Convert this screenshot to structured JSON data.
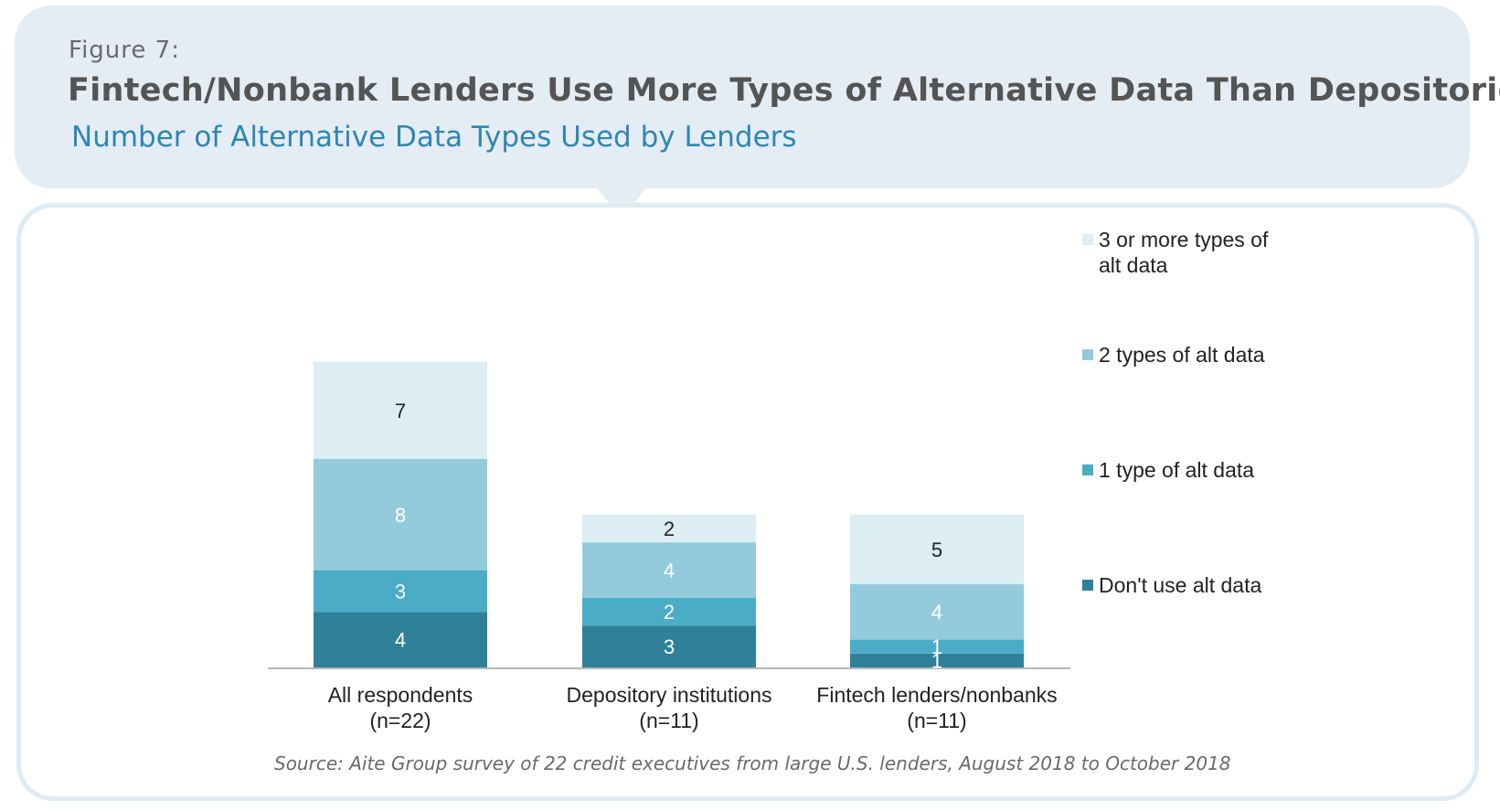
{
  "header": {
    "figure_label": "Figure 7:",
    "title": "Fintech/Nonbank Lenders Use More Types of Alternative Data Than Depositories",
    "subtitle": "Number of Alternative Data Types Used by Lenders"
  },
  "source": "Source: Aite Group survey of 22 credit executives from large U.S. lenders, August 2018 to October 2018",
  "chart_data": {
    "type": "bar",
    "stacked": true,
    "categories": [
      [
        "All respondents",
        "(n=22)"
      ],
      [
        "Depository institutions",
        "(n=11)"
      ],
      [
        "Fintech lenders/nonbanks",
        "(n=11)"
      ]
    ],
    "series": [
      {
        "name": "Don't use alt data",
        "values": [
          4,
          3,
          1
        ],
        "color": "#2e8199",
        "label_color": "#ffffff"
      },
      {
        "name": "1 type of alt data",
        "values": [
          3,
          2,
          1
        ],
        "color": "#4aacc6",
        "label_color": "#ffffff"
      },
      {
        "name": "2 types of alt data",
        "values": [
          8,
          4,
          4
        ],
        "color": "#94cbdc",
        "label_color": "#ffffff"
      },
      {
        "name": "3 or more types of alt data",
        "values": [
          7,
          2,
          5
        ],
        "color": "#dcedf4",
        "label_color": "#222222"
      }
    ],
    "legend_position": "right",
    "legend_order": [
      "3 or more types of alt data",
      "2 types of alt data",
      "1 type of alt data",
      "Don't use alt data"
    ],
    "grid": false,
    "ylim": [
      0,
      22
    ]
  }
}
